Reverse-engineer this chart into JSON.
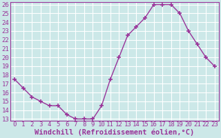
{
  "x": [
    0,
    1,
    2,
    3,
    4,
    5,
    6,
    7,
    8,
    9,
    10,
    11,
    12,
    13,
    14,
    15,
    16,
    17,
    18,
    19,
    20,
    21,
    22,
    23
  ],
  "y": [
    17.5,
    16.5,
    15.5,
    15.0,
    14.5,
    14.5,
    13.5,
    13.0,
    13.0,
    13.0,
    14.5,
    17.5,
    20.0,
    22.5,
    23.5,
    24.5,
    26.0,
    26.0,
    26.0,
    25.0,
    23.0,
    21.5,
    20.0,
    19.0
  ],
  "xlabel": "Windchill (Refroidissement éolien,°C)",
  "ylim_min": 12.8,
  "ylim_max": 26.3,
  "yticks": [
    13,
    14,
    15,
    16,
    17,
    18,
    19,
    20,
    21,
    22,
    23,
    24,
    25,
    26
  ],
  "xticks": [
    0,
    1,
    2,
    3,
    4,
    5,
    6,
    7,
    8,
    9,
    10,
    11,
    12,
    13,
    14,
    15,
    16,
    17,
    18,
    19,
    20,
    21,
    22,
    23
  ],
  "line_color": "#993399",
  "marker": "+",
  "bg_color": "#cce8e8",
  "grid_color": "#aacccc",
  "tick_label_color": "#993399",
  "xlabel_color": "#993399",
  "xlabel_fontsize": 7.5,
  "tick_fontsize": 6.5,
  "linewidth": 1.0,
  "markersize": 4,
  "markeredgewidth": 1.2
}
